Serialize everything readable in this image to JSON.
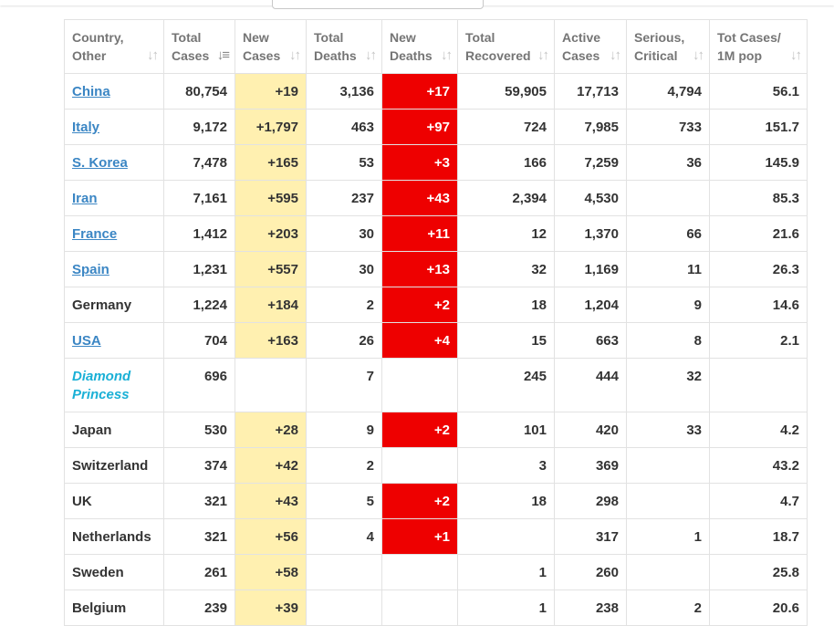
{
  "columns": [
    {
      "label": "Country,\nOther"
    },
    {
      "label": "Total\nCases"
    },
    {
      "label": "New\nCases"
    },
    {
      "label": "Total\nDeaths"
    },
    {
      "label": "New\nDeaths"
    },
    {
      "label": "Total\nRecovered"
    },
    {
      "label": "Active\nCases"
    },
    {
      "label": "Serious,\nCritical"
    },
    {
      "label": "Tot Cases/\n1M pop"
    }
  ],
  "sorted_column_index": 1,
  "colors": {
    "new_cases_highlight": "#fff0b0",
    "new_deaths_highlight": "#ee0000",
    "country_link": "#3b86c4",
    "ship_link": "#1ab0d6"
  },
  "rows": [
    {
      "country": "China",
      "link": true,
      "ship": false,
      "total_cases": "80,754",
      "new_cases": "+19",
      "total_deaths": "3,136",
      "new_deaths": "+17",
      "total_recovered": "59,905",
      "active_cases": "17,713",
      "serious_critical": "4,794",
      "per_million": "56.1"
    },
    {
      "country": "Italy",
      "link": true,
      "ship": false,
      "total_cases": "9,172",
      "new_cases": "+1,797",
      "total_deaths": "463",
      "new_deaths": "+97",
      "total_recovered": "724",
      "active_cases": "7,985",
      "serious_critical": "733",
      "per_million": "151.7"
    },
    {
      "country": "S. Korea",
      "link": true,
      "ship": false,
      "total_cases": "7,478",
      "new_cases": "+165",
      "total_deaths": "53",
      "new_deaths": "+3",
      "total_recovered": "166",
      "active_cases": "7,259",
      "serious_critical": "36",
      "per_million": "145.9"
    },
    {
      "country": "Iran",
      "link": true,
      "ship": false,
      "total_cases": "7,161",
      "new_cases": "+595",
      "total_deaths": "237",
      "new_deaths": "+43",
      "total_recovered": "2,394",
      "active_cases": "4,530",
      "serious_critical": "",
      "per_million": "85.3"
    },
    {
      "country": "France",
      "link": true,
      "ship": false,
      "total_cases": "1,412",
      "new_cases": "+203",
      "total_deaths": "30",
      "new_deaths": "+11",
      "total_recovered": "12",
      "active_cases": "1,370",
      "serious_critical": "66",
      "per_million": "21.6"
    },
    {
      "country": "Spain",
      "link": true,
      "ship": false,
      "total_cases": "1,231",
      "new_cases": "+557",
      "total_deaths": "30",
      "new_deaths": "+13",
      "total_recovered": "32",
      "active_cases": "1,169",
      "serious_critical": "11",
      "per_million": "26.3"
    },
    {
      "country": "Germany",
      "link": false,
      "ship": false,
      "total_cases": "1,224",
      "new_cases": "+184",
      "total_deaths": "2",
      "new_deaths": "+2",
      "total_recovered": "18",
      "active_cases": "1,204",
      "serious_critical": "9",
      "per_million": "14.6"
    },
    {
      "country": "USA",
      "link": true,
      "ship": false,
      "total_cases": "704",
      "new_cases": "+163",
      "total_deaths": "26",
      "new_deaths": "+4",
      "total_recovered": "15",
      "active_cases": "663",
      "serious_critical": "8",
      "per_million": "2.1"
    },
    {
      "country": "Diamond Princess",
      "link": true,
      "ship": true,
      "total_cases": "696",
      "new_cases": "",
      "total_deaths": "7",
      "new_deaths": "",
      "total_recovered": "245",
      "active_cases": "444",
      "serious_critical": "32",
      "per_million": ""
    },
    {
      "country": "Japan",
      "link": false,
      "ship": false,
      "total_cases": "530",
      "new_cases": "+28",
      "total_deaths": "9",
      "new_deaths": "+2",
      "total_recovered": "101",
      "active_cases": "420",
      "serious_critical": "33",
      "per_million": "4.2"
    },
    {
      "country": "Switzerland",
      "link": false,
      "ship": false,
      "total_cases": "374",
      "new_cases": "+42",
      "total_deaths": "2",
      "new_deaths": "",
      "total_recovered": "3",
      "active_cases": "369",
      "serious_critical": "",
      "per_million": "43.2"
    },
    {
      "country": "UK",
      "link": false,
      "ship": false,
      "total_cases": "321",
      "new_cases": "+43",
      "total_deaths": "5",
      "new_deaths": "+2",
      "total_recovered": "18",
      "active_cases": "298",
      "serious_critical": "",
      "per_million": "4.7"
    },
    {
      "country": "Netherlands",
      "link": false,
      "ship": false,
      "total_cases": "321",
      "new_cases": "+56",
      "total_deaths": "4",
      "new_deaths": "+1",
      "total_recovered": "",
      "active_cases": "317",
      "serious_critical": "1",
      "per_million": "18.7"
    },
    {
      "country": "Sweden",
      "link": false,
      "ship": false,
      "total_cases": "261",
      "new_cases": "+58",
      "total_deaths": "",
      "new_deaths": "",
      "total_recovered": "1",
      "active_cases": "260",
      "serious_critical": "",
      "per_million": "25.8"
    },
    {
      "country": "Belgium",
      "link": false,
      "ship": false,
      "total_cases": "239",
      "new_cases": "+39",
      "total_deaths": "",
      "new_deaths": "",
      "total_recovered": "1",
      "active_cases": "238",
      "serious_critical": "2",
      "per_million": "20.6"
    }
  ]
}
